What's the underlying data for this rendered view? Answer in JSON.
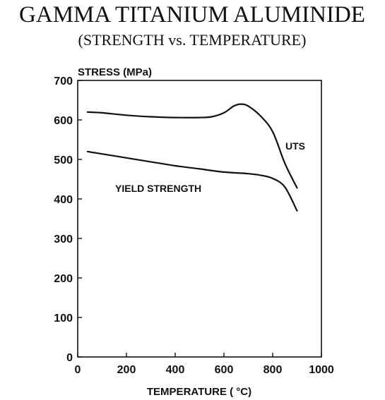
{
  "chart_data": {
    "type": "line",
    "title": "GAMMA TITANIUM ALUMINIDE",
    "subtitle": "(STRENGTH vs. TEMPERATURE)",
    "xlabel": "TEMPERATURE ( °C)",
    "ylabel": "STRESS (MPa)",
    "xlim": [
      0,
      1000
    ],
    "ylim": [
      0,
      700
    ],
    "x_ticks": [
      "0",
      "200",
      "400",
      "600",
      "800",
      "1000"
    ],
    "y_ticks": [
      "0",
      "100",
      "200",
      "300",
      "400",
      "500",
      "600",
      "700"
    ],
    "grid": false,
    "legend": "none",
    "series": [
      {
        "name": "UTS",
        "x": [
          40,
          100,
          200,
          300,
          400,
          500,
          550,
          600,
          640,
          670,
          700,
          750,
          800,
          850,
          900
        ],
        "y": [
          620,
          618,
          612,
          608,
          606,
          606,
          608,
          618,
          635,
          640,
          635,
          610,
          570,
          490,
          428
        ]
      },
      {
        "name": "YIELD STRENGTH",
        "x": [
          40,
          100,
          200,
          300,
          400,
          500,
          600,
          700,
          750,
          800,
          850,
          900
        ],
        "y": [
          520,
          514,
          504,
          494,
          484,
          476,
          468,
          464,
          460,
          452,
          430,
          370
        ]
      }
    ]
  }
}
